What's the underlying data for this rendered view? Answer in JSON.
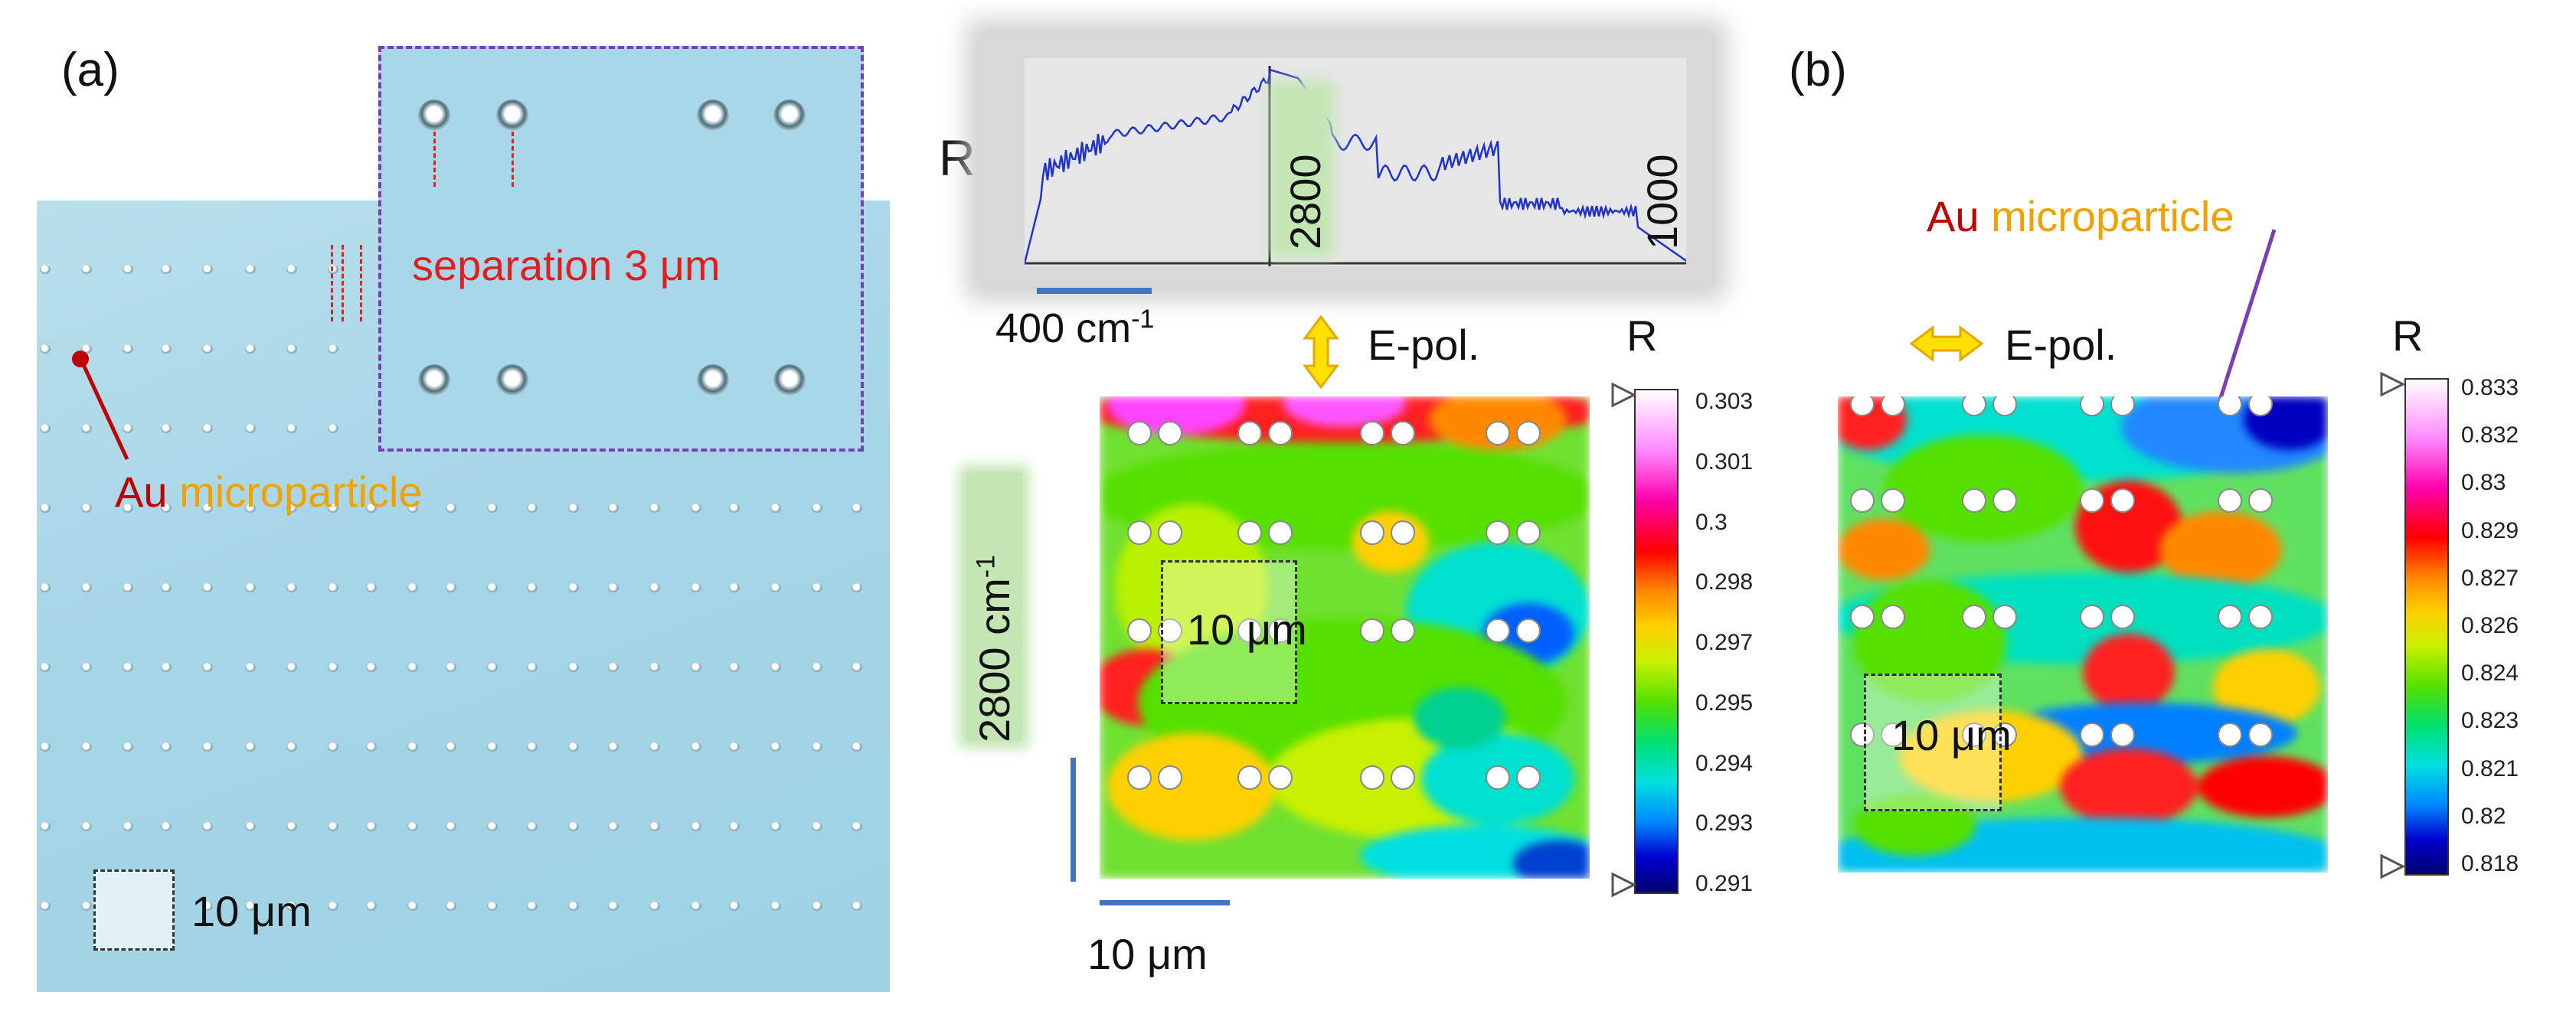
{
  "panel_labels": {
    "a": "(a)",
    "b": "(b)"
  },
  "inset": {
    "separation_text": "separation 3 μm"
  },
  "micrograph": {
    "particle_label_word1": "Au",
    "particle_label_word2": "microparticle",
    "scale_label": "10 μm"
  },
  "spectrum": {
    "y_label": "R",
    "marker_2800": "2800",
    "marker_1000": "1000",
    "scale_label": "400 cm",
    "scale_sup": "-1"
  },
  "map_a": {
    "polarization": "E-pol.",
    "row_label": "2800 cm",
    "row_sup": "-1",
    "box_label": "10 μm",
    "scale_label": "10 μm",
    "cbar_title": "R",
    "cbar_ticks": [
      "0.303",
      "0.301",
      "0.3",
      "0.298",
      "0.297",
      "0.295",
      "0.294",
      "0.293",
      "0.291"
    ]
  },
  "map_b": {
    "particle_label_word1": "Au",
    "particle_label_word2": "microparticle",
    "polarization": "E-pol.",
    "box_label": "10 μm",
    "cbar_title": "R",
    "cbar_ticks": [
      "0.833",
      "0.832",
      "0.83",
      "0.829",
      "0.827",
      "0.826",
      "0.824",
      "0.823",
      "0.821",
      "0.82",
      "0.818"
    ]
  },
  "colors": {
    "red": "#d81e1e",
    "orange": "#f2a100",
    "purple": "#7a3fb5",
    "blue": "#4472c4",
    "dark_red": "#c00000"
  }
}
